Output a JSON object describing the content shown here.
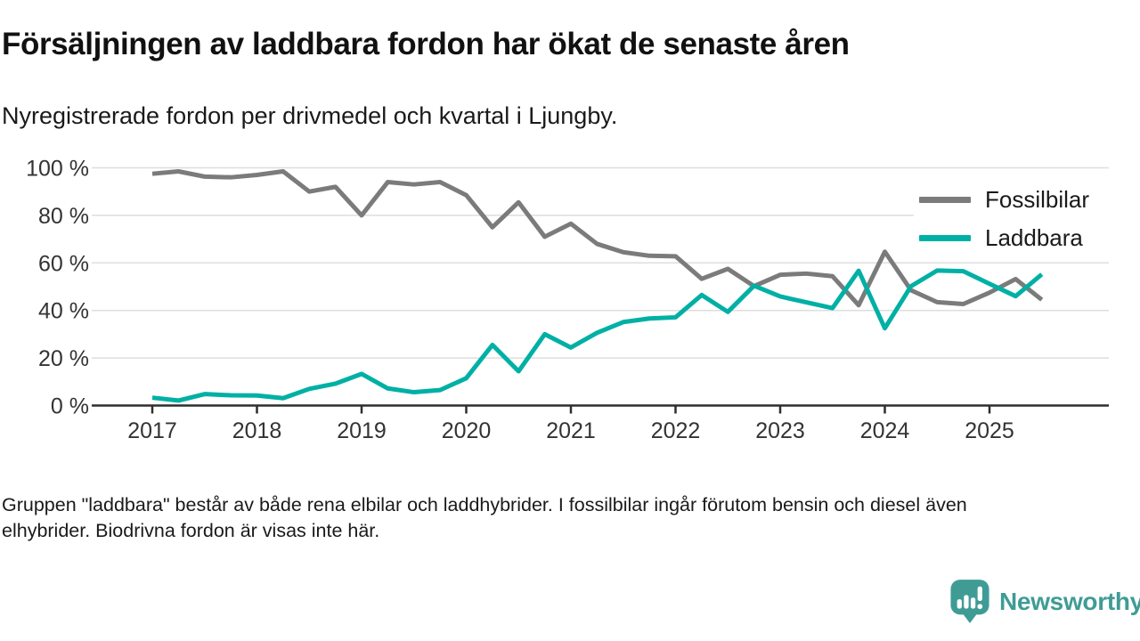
{
  "chart_data": {
    "type": "line",
    "title": "Försäljningen av laddbara fordon har ökat de senaste åren",
    "subtitle": "Nyregistrerade fordon per drivmedel och kvartal i Ljungby.",
    "categories": [
      "2017 Q1",
      "2017 Q2",
      "2017 Q3",
      "2017 Q4",
      "2018 Q1",
      "2018 Q2",
      "2018 Q3",
      "2018 Q4",
      "2019 Q1",
      "2019 Q2",
      "2019 Q3",
      "2019 Q4",
      "2020 Q1",
      "2020 Q2",
      "2020 Q3",
      "2020 Q4",
      "2021 Q1",
      "2021 Q2",
      "2021 Q3",
      "2021 Q4",
      "2022 Q1",
      "2022 Q2",
      "2022 Q3",
      "2022 Q4",
      "2023 Q1",
      "2023 Q2",
      "2023 Q3",
      "2023 Q4",
      "2024 Q1",
      "2024 Q2",
      "2024 Q3",
      "2024 Q4",
      "2025 Q1",
      "2025 Q2",
      "2025 Q3"
    ],
    "series": [
      {
        "name": "Fossilbilar",
        "color": "#7b7b7b",
        "values": [
          97.5,
          98.5,
          96.3,
          96.0,
          97.0,
          98.5,
          90.0,
          92.0,
          80.0,
          94.0,
          93.0,
          94.0,
          88.5,
          75.0,
          85.5,
          71.0,
          76.5,
          68.0,
          64.5,
          63.0,
          62.8,
          53.3,
          57.5,
          50.2,
          55.0,
          55.5,
          54.4,
          42.2,
          64.7,
          48.5,
          43.5,
          42.7,
          47.5,
          53.2,
          44.5
        ]
      },
      {
        "name": "Laddbara",
        "color": "#00b0a5",
        "values": [
          3.3,
          2.1,
          4.8,
          4.3,
          4.2,
          3.1,
          7.0,
          9.2,
          13.3,
          7.2,
          5.6,
          6.5,
          11.5,
          25.5,
          14.4,
          30.0,
          24.4,
          30.6,
          35.1,
          36.6,
          37.1,
          46.5,
          39.4,
          50.4,
          45.9,
          43.4,
          41.0,
          56.7,
          32.5,
          50.2,
          56.8,
          56.5,
          51.2,
          46.0,
          55.2
        ]
      }
    ],
    "x_ticks": [
      "2017",
      "2018",
      "2019",
      "2020",
      "2021",
      "2022",
      "2023",
      "2024",
      "2025"
    ],
    "y_ticks": [
      "0 %",
      "20 %",
      "40 %",
      "60 %",
      "80 %",
      "100 %"
    ],
    "xlabel": "",
    "ylabel": "",
    "ylim": [
      0,
      100
    ],
    "grid": "horizontal",
    "legend_position": "top-right"
  },
  "footer": {
    "lines": [
      "Gruppen \"laddbara\" består av både rena elbilar och laddhybrider. I fossilbilar ingår förutom bensin och diesel även",
      "elhybrider. Biodrivna fordon är visas inte här."
    ]
  },
  "branding": {
    "logo_text": "Newsworthy",
    "logo_color": "#3f9c95"
  }
}
